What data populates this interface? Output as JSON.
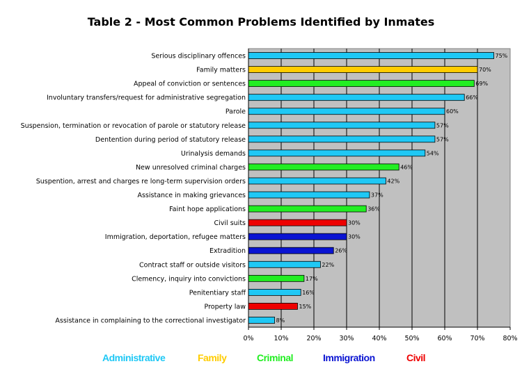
{
  "colors": {
    "Administrative": "#1fc8f5",
    "Family": "#ffcc00",
    "Criminal": "#22ee22",
    "Immigration": "#0a14d2",
    "Civil": "#ee0000"
  },
  "legend": [
    {
      "label": "Administrative",
      "group": "Administrative"
    },
    {
      "label": "Family",
      "group": "Family"
    },
    {
      "label": "Criminal",
      "group": "Criminal"
    },
    {
      "label": "Immigration",
      "group": "Immigration"
    },
    {
      "label": "Civil",
      "group": "Civil"
    }
  ],
  "chart_data": {
    "type": "bar",
    "orientation": "horizontal",
    "title": "Table 2 - Most Common Problems Identified by Inmates",
    "xlim": [
      0,
      80
    ],
    "x_ticks": [
      "0%",
      "10%",
      "20%",
      "30%",
      "40%",
      "50%",
      "60%",
      "70%",
      "80%"
    ],
    "grid": true,
    "legend_position": "bottom",
    "categories": [
      "Serious disciplinary offences",
      "Family matters",
      "Appeal of conviction or sentences",
      "Involuntary transfers/request for administrative segregation",
      "Parole",
      "Suspension, termination or revocation of parole or statutory release",
      "Dentention during period of statutory release",
      "Urinalysis demands",
      "New unresolved criminal charges",
      "Suspention, arrest and charges re long-term supervision orders",
      "Assistance in making grievances",
      "Faint hope applications",
      "Civil suits",
      "Immigration, deportation, refugee matters",
      "Extradition",
      "Contract staff or outside visitors",
      "Clemency, inquiry into convictions",
      "Penitentiary staff",
      "Property law",
      "Assistance in complaining to the correctional investigator"
    ],
    "values": [
      75,
      70,
      69,
      66,
      60,
      57,
      57,
      54,
      46,
      42,
      37,
      36,
      30,
      30,
      26,
      22,
      17,
      16,
      15,
      8
    ],
    "data_labels": [
      "75%",
      "70%",
      "69%",
      "66%",
      "60%",
      "57%",
      "57%",
      "54%",
      "46%",
      "42%",
      "37%",
      "36%",
      "30%",
      "30%",
      "26%",
      "22%",
      "17%",
      "16%",
      "15%",
      "8%"
    ],
    "groups": [
      "Administrative",
      "Family",
      "Criminal",
      "Administrative",
      "Administrative",
      "Administrative",
      "Administrative",
      "Administrative",
      "Criminal",
      "Administrative",
      "Administrative",
      "Criminal",
      "Civil",
      "Immigration",
      "Immigration",
      "Administrative",
      "Criminal",
      "Administrative",
      "Civil",
      "Administrative"
    ]
  }
}
